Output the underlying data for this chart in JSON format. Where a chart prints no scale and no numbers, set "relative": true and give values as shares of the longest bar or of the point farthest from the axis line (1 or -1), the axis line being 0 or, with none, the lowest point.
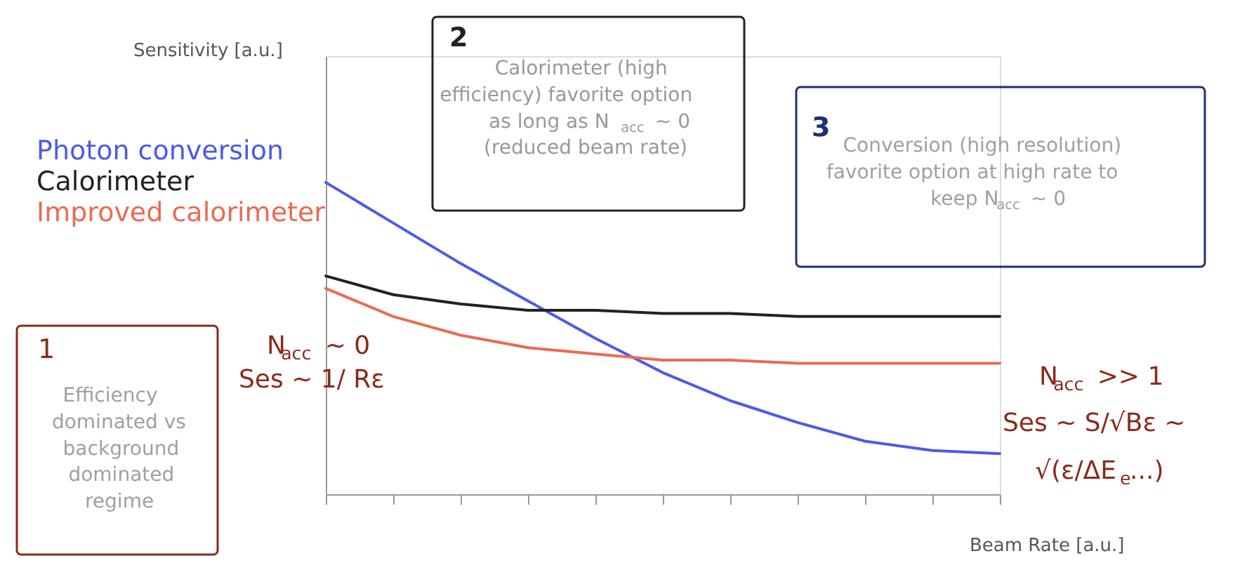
{
  "chart_data": {
    "type": "line",
    "relative": true,
    "xlabel": "Beam Rate [a.u.]",
    "legend": "top left",
    "categories": [
      null,
      null,
      null,
      null,
      null,
      null,
      null,
      null,
      null,
      null,
      null
    ],
    "series": [
      {
        "name": "Photon conversion",
        "color": "#4a5be8",
        "values": [
          1,
          0.87,
          0.74,
          0.62,
          0.5,
          0.39,
          0.3,
          0.23,
          0.17,
          0.14,
          0.13
        ]
      },
      {
        "name": "Calorimeter",
        "color": "#222222",
        "values": [
          0.7,
          0.64,
          0.61,
          0.59,
          0.59,
          0.58,
          0.58,
          0.57,
          0.57,
          0.57,
          0.57
        ]
      },
      {
        "name": "Improved calorimeter",
        "color": "#ec6a52",
        "values": [
          0.66,
          0.57,
          0.51,
          0.47,
          0.45,
          0.43,
          0.43,
          0.42,
          0.42,
          0.42,
          0.42
        ]
      }
    ],
    "annotations": [
      "1",
      "Efficiency dominated vs background dominated regime",
      "2",
      "Calorimeter (high efficiency) favorite option as long as N$_{acc}$ ~ 0 (reduced beam rate)",
      "3",
      "Conversion (high resolution) favorite option at high rate to keep N$_{acc}$ ~ 0",
      "N$_{acc}$ ~ 0",
      "Ses ~ 1/ Rε",
      "N$_{acc}$ >> 1",
      "Ses ~ S/√Bε ~",
      "√(ε/ΔE$_{e}$...)",
      "Sensitivity [a.u.]"
    ]
  }
}
